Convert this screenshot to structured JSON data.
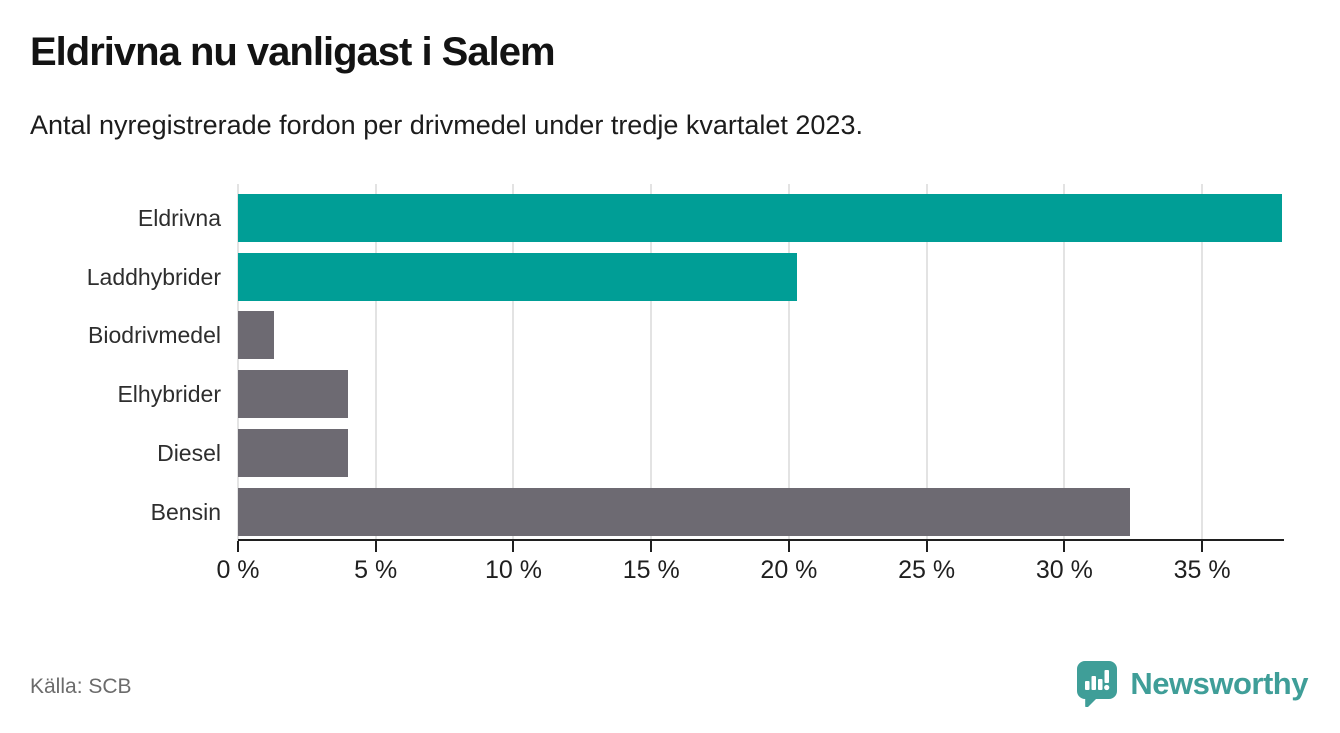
{
  "header": {
    "title": "Eldrivna nu vanligast i Salem",
    "subtitle": "Antal nyregistrerade fordon per drivmedel under tredje kvartalet 2023."
  },
  "chart_data": {
    "type": "bar",
    "orientation": "horizontal",
    "title": "Eldrivna nu vanligast i Salem",
    "categories": [
      "Eldrivna",
      "Laddhybrider",
      "Biodrivmedel",
      "Elhybrider",
      "Diesel",
      "Bensin"
    ],
    "values": [
      37.9,
      20.3,
      1.3,
      4.0,
      4.0,
      32.4
    ],
    "unit": "%",
    "xlim": [
      0,
      37.9
    ],
    "xticks": [
      0,
      5,
      10,
      15,
      20,
      25,
      30,
      35
    ],
    "xtick_labels": [
      "0 %",
      "5 %",
      "10 %",
      "15 %",
      "20 %",
      "25 %",
      "30 %",
      "35 %"
    ],
    "bar_colors": [
      "#009e96",
      "#009e96",
      "#6d6a72",
      "#6d6a72",
      "#6d6a72",
      "#6d6a72"
    ],
    "grid": true,
    "legend": "none"
  },
  "colors": {
    "accent_teal": "#009e96",
    "neutral_gray": "#6d6a72",
    "gridline": "#e3e3e3",
    "axis": "#1f1f1f",
    "brand_teal": "#3f9e98"
  },
  "footer": {
    "source": "Källa: SCB",
    "brand": "Newsworthy"
  }
}
